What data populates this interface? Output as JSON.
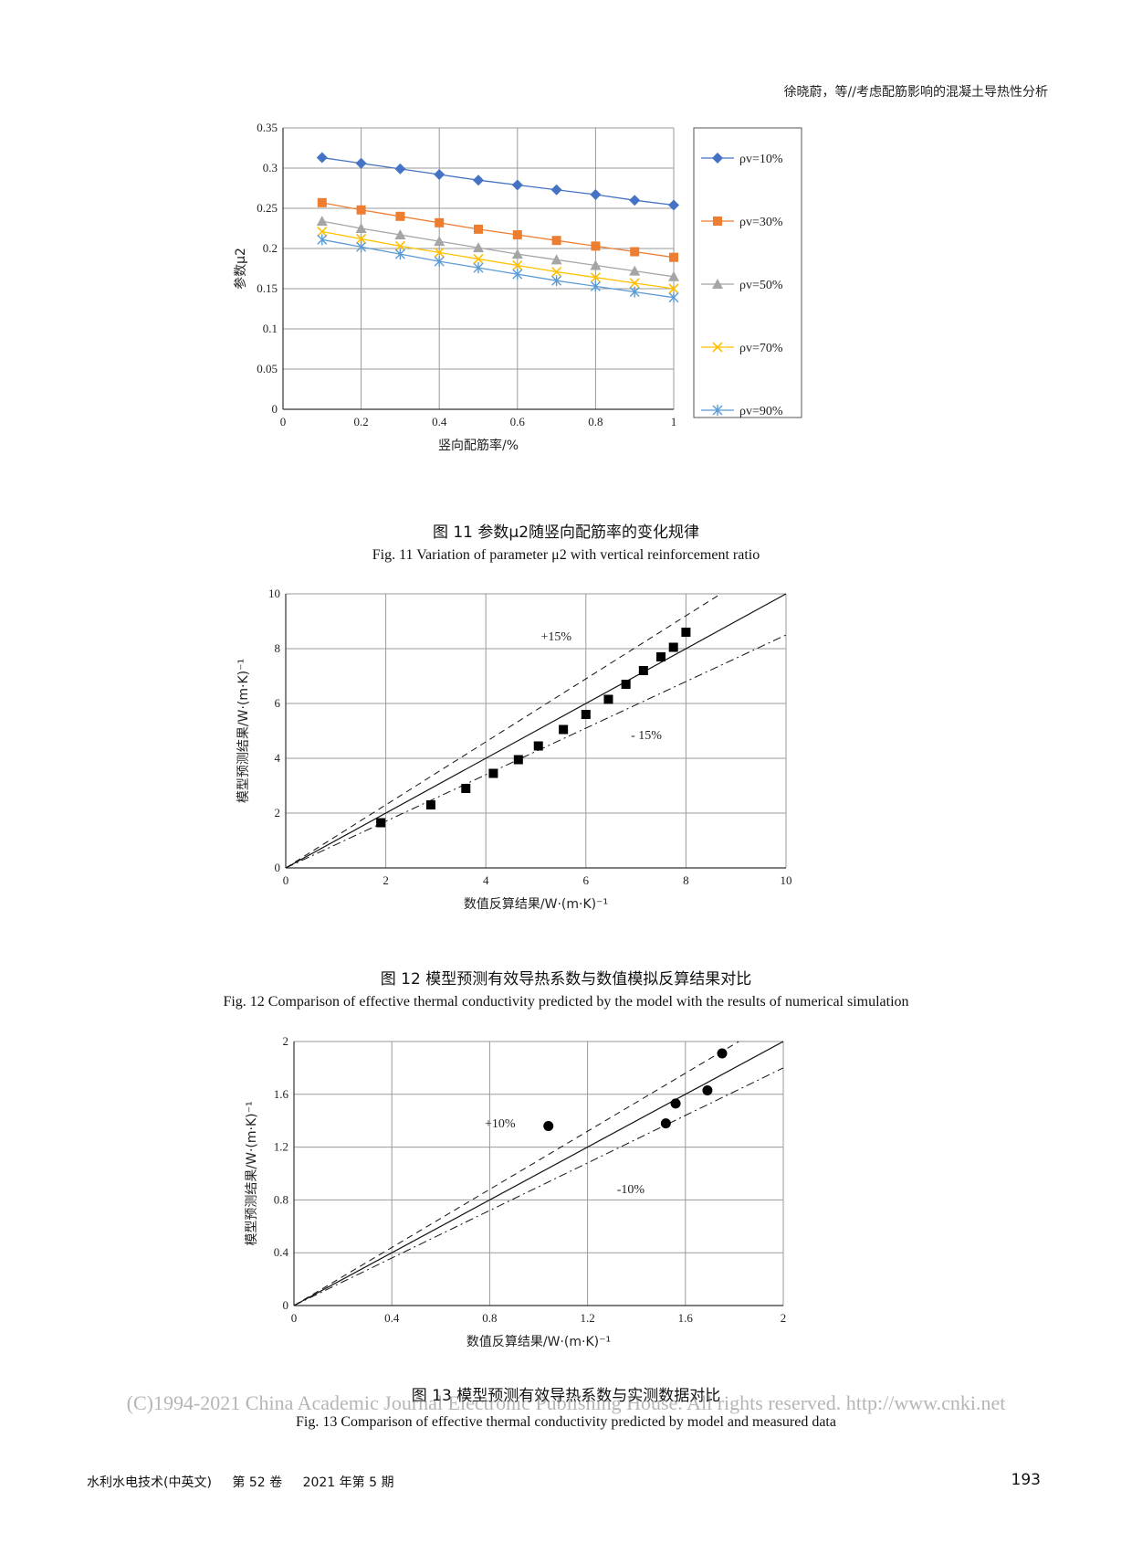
{
  "header": {
    "running_title": "徐晓蔚，等//考虑配筋影响的混凝土导热性分析"
  },
  "figures": [
    {
      "caption_cn": "图 11  参数μ2随竖向配筋率的变化规律",
      "caption_en": "Fig. 11   Variation of parameter μ2 with vertical reinforcement ratio"
    },
    {
      "caption_cn": "图 12  模型预测有效导热系数与数值模拟反算结果对比",
      "caption_en": "Fig. 12   Comparison of effective thermal conductivity predicted by the model with the results of numerical simulation"
    },
    {
      "caption_cn": "图 13  模型预测有效导热系数与实测数据对比",
      "caption_en": "Fig. 13   Comparison of effective thermal conductivity predicted by model and measured data"
    }
  ],
  "chart_data": [
    {
      "type": "line",
      "xlabel": "竖向配筋率/%",
      "ylabel": "参数μ2",
      "xlim": [
        0,
        1
      ],
      "ylim": [
        0,
        0.35
      ],
      "x_ticks": [
        "0",
        "0.2",
        "0.4",
        "0.6",
        "0.8",
        "1"
      ],
      "y_ticks": [
        "0",
        "0.05",
        "0.1",
        "0.15",
        "0.2",
        "0.25",
        "0.3",
        "0.35"
      ],
      "grid": true,
      "legend_position": "right",
      "x": [
        0.1,
        0.2,
        0.3,
        0.4,
        0.5,
        0.6,
        0.7,
        0.8,
        0.9,
        1.0
      ],
      "series": [
        {
          "name": "ρv=10%",
          "color": "#4472c4",
          "marker": "diamond",
          "values": [
            0.313,
            0.306,
            0.299,
            0.292,
            0.285,
            0.279,
            0.273,
            0.267,
            0.26,
            0.254
          ]
        },
        {
          "name": "ρv=30%",
          "color": "#ed7d31",
          "marker": "square",
          "values": [
            0.257,
            0.248,
            0.24,
            0.232,
            0.224,
            0.217,
            0.21,
            0.203,
            0.196,
            0.189
          ]
        },
        {
          "name": "ρv=50%",
          "color": "#a5a5a5",
          "marker": "triangle",
          "values": [
            0.234,
            0.225,
            0.217,
            0.209,
            0.201,
            0.193,
            0.186,
            0.179,
            0.172,
            0.165
          ]
        },
        {
          "name": "ρv=70%",
          "color": "#ffc000",
          "marker": "x",
          "values": [
            0.221,
            0.212,
            0.203,
            0.195,
            0.187,
            0.179,
            0.171,
            0.164,
            0.157,
            0.15
          ]
        },
        {
          "name": "ρv=90%",
          "color": "#5b9bd5",
          "marker": "asterisk",
          "values": [
            0.211,
            0.202,
            0.193,
            0.184,
            0.176,
            0.168,
            0.16,
            0.153,
            0.146,
            0.139
          ]
        }
      ]
    },
    {
      "type": "scatter",
      "xlabel": "数值反算结果/W·(m·K)⁻¹",
      "ylabel": "模型预测结果/W·(m·K)⁻¹",
      "xlim": [
        0,
        10
      ],
      "ylim": [
        0,
        10
      ],
      "x_ticks": [
        "0",
        "2",
        "4",
        "6",
        "8",
        "10"
      ],
      "y_ticks": [
        "0",
        "2",
        "4",
        "6",
        "8",
        "10"
      ],
      "grid": true,
      "points": [
        {
          "x": 1.9,
          "y": 1.65
        },
        {
          "x": 2.9,
          "y": 2.3
        },
        {
          "x": 3.6,
          "y": 2.9
        },
        {
          "x": 4.15,
          "y": 3.45
        },
        {
          "x": 4.65,
          "y": 3.95
        },
        {
          "x": 5.05,
          "y": 4.45
        },
        {
          "x": 5.55,
          "y": 5.05
        },
        {
          "x": 6.0,
          "y": 5.6
        },
        {
          "x": 6.45,
          "y": 6.15
        },
        {
          "x": 6.8,
          "y": 6.7
        },
        {
          "x": 7.15,
          "y": 7.2
        },
        {
          "x": 7.5,
          "y": 7.7
        },
        {
          "x": 7.75,
          "y": 8.05
        },
        {
          "x": 8.0,
          "y": 8.6
        }
      ],
      "reference_lines": [
        {
          "slope": 1.0,
          "style": "solid"
        },
        {
          "slope": 1.15,
          "style": "dashed",
          "label": "+15%"
        },
        {
          "slope": 0.85,
          "style": "dashdot",
          "label": "- 15%"
        }
      ]
    },
    {
      "type": "scatter",
      "xlabel": "数值反算结果/W·(m·K)⁻¹",
      "ylabel": "模型预测结果/W·(m·K)⁻¹",
      "xlim": [
        0,
        2
      ],
      "ylim": [
        0,
        2
      ],
      "x_ticks": [
        "0",
        "0.4",
        "0.8",
        "1.2",
        "1.6",
        "2"
      ],
      "y_ticks": [
        "0",
        "0.4",
        "0.8",
        "1.2",
        "1.6",
        "2"
      ],
      "grid": true,
      "points": [
        {
          "x": 1.04,
          "y": 1.36
        },
        {
          "x": 1.52,
          "y": 1.38
        },
        {
          "x": 1.56,
          "y": 1.53
        },
        {
          "x": 1.69,
          "y": 1.63
        },
        {
          "x": 1.75,
          "y": 1.91
        }
      ],
      "reference_lines": [
        {
          "slope": 1.0,
          "style": "solid"
        },
        {
          "slope": 1.1,
          "style": "dashed",
          "label": "+10%"
        },
        {
          "slope": 0.9,
          "style": "dashdot",
          "label": "-10%"
        }
      ]
    }
  ],
  "watermark": "(C)1994-2021 China Academic Journal Electronic Publishing House. All rights reserved.    http://www.cnki.net",
  "footer": {
    "journal": "水利水电技术(中英文)",
    "volume": "第 52 卷",
    "issue": "2021 年第 5 期",
    "page_number": "193"
  }
}
